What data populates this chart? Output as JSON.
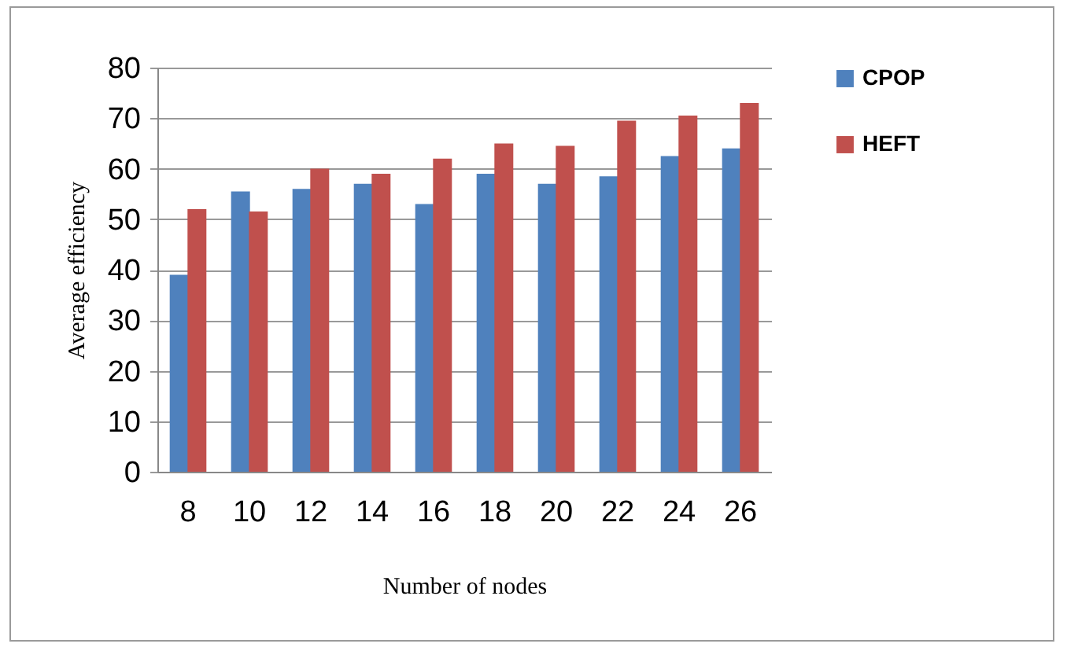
{
  "chart_data": {
    "type": "bar",
    "xlabel": "Number of nodes",
    "ylabel": "Average efficiency",
    "categories": [
      "8",
      "10",
      "12",
      "14",
      "16",
      "18",
      "20",
      "22",
      "24",
      "26"
    ],
    "series": [
      {
        "name": "CPOP",
        "color": "#4f81bd",
        "values": [
          39,
          55.5,
          56,
          57,
          53,
          59,
          57,
          58.5,
          62.5,
          64
        ]
      },
      {
        "name": "HEFT",
        "color": "#c0504d",
        "values": [
          52,
          51.5,
          60,
          59,
          62,
          65,
          64.5,
          69.5,
          70.5,
          73
        ]
      }
    ],
    "ylim": [
      0,
      80
    ],
    "yticks": [
      0,
      10,
      20,
      30,
      40,
      50,
      60,
      70,
      80
    ],
    "grid": "y",
    "legend": "right"
  }
}
